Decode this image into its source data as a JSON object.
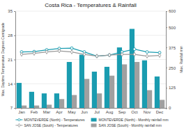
{
  "chart_data": {
    "type": "bar",
    "title": "Costa Rica - Temperatures & Rainfall",
    "categories": [
      "Jan",
      "Feb",
      "Mar",
      "Apr",
      "May",
      "Jun",
      "Jul",
      "Aug",
      "Sep",
      "Oct",
      "Nov",
      "Dec"
    ],
    "series": [
      {
        "name": "MONTEVERDE (North) - Temperatures",
        "type": "line",
        "color": "#1a9cb0",
        "marker": "circle",
        "values": [
          23.2,
          23.3,
          23.8,
          24.2,
          24.3,
          23.2,
          22.0,
          22.3,
          23.2,
          24.0,
          23.2,
          23.0
        ]
      },
      {
        "name": "SAN JOSE (South) - Temperatures",
        "type": "line",
        "color": "#999999",
        "marker": "diamond",
        "values": [
          22.5,
          22.8,
          23.2,
          23.5,
          23.2,
          22.5,
          22.0,
          22.3,
          22.5,
          22.5,
          22.0,
          22.2
        ]
      },
      {
        "name": "MONTEVERDE (North) - Monthly rainfall mm",
        "type": "bar",
        "color": "#1a9cb0",
        "axis": "y2",
        "values": [
          155,
          100,
          90,
          90,
          285,
          330,
          225,
          255,
          375,
          490,
          295,
          195
        ]
      },
      {
        "name": "SAN JOSE (South) - Monthly rainfall mm",
        "type": "bar",
        "color": "#a0a0a0",
        "axis": "y2",
        "values": [
          15,
          15,
          20,
          55,
          80,
          180,
          90,
          200,
          270,
          285,
          110,
          50
        ]
      }
    ],
    "ylabel": "Max. Daytime Temperature Degrees Centigrade",
    "y2label": "Max. Rainfall mm",
    "ylim": [
      7,
      35
    ],
    "yticks": [
      7,
      14,
      21,
      28,
      35
    ],
    "y2lim": [
      0,
      600
    ],
    "y2ticks": [
      0,
      125,
      250,
      375,
      500,
      600
    ],
    "grid": true,
    "legend": "bottom"
  }
}
